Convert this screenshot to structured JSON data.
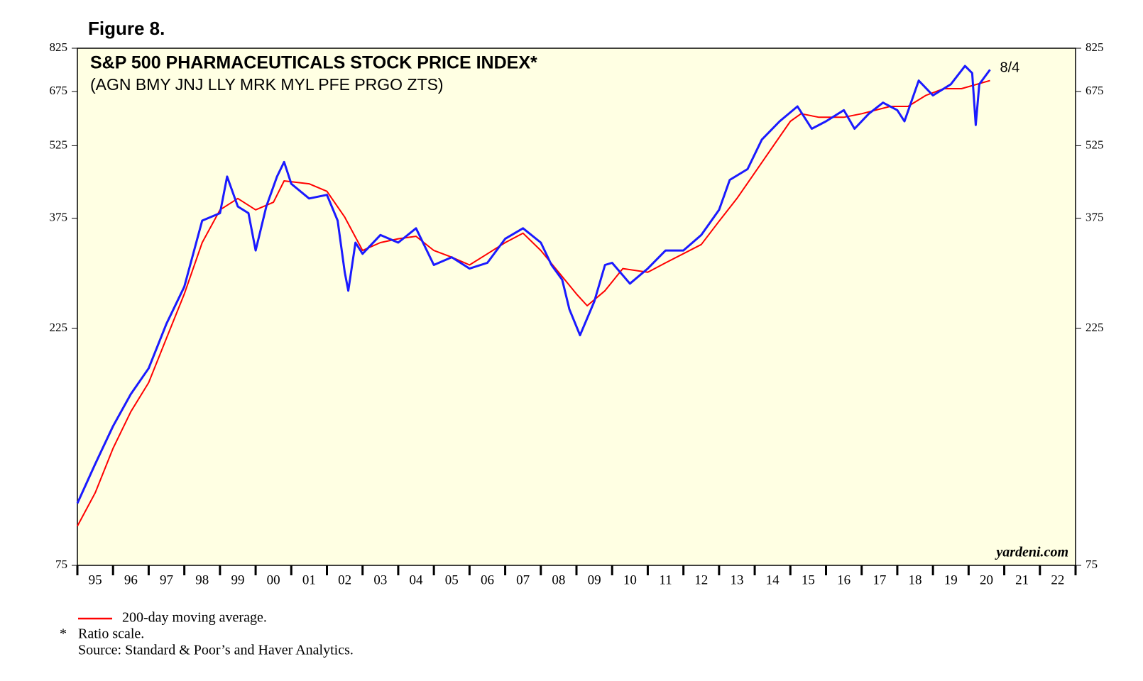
{
  "chart_data": {
    "type": "line",
    "figure_label": "Figure 8.",
    "title": "S&P 500 PHARMACEUTICALS STOCK PRICE INDEX*",
    "subtitle": "(AGN BMY JNJ LLY MRK MYL PFE PRGO ZTS)",
    "watermark": "yardeni.com",
    "end_label": "8/4",
    "footnote_marker": "*",
    "footnote": "Ratio scale.",
    "source": "Source: Standard & Poor’s and Haver Analytics.",
    "log_scale": true,
    "ylim": [
      75,
      825
    ],
    "yticks": [
      75,
      225,
      375,
      525,
      675,
      825
    ],
    "xlim": [
      1995,
      2023
    ],
    "categories": [
      "95",
      "96",
      "97",
      "98",
      "99",
      "00",
      "01",
      "02",
      "03",
      "04",
      "05",
      "06",
      "07",
      "08",
      "09",
      "10",
      "11",
      "12",
      "13",
      "14",
      "15",
      "16",
      "17",
      "18",
      "19",
      "20",
      "21",
      "22"
    ],
    "background": "#ffffe3",
    "series": [
      {
        "color": "#1a1aff",
        "x": [
          1995.0,
          1995.5,
          1996.0,
          1996.5,
          1997.0,
          1997.5,
          1998.0,
          1998.5,
          1999.0,
          1999.2,
          1999.5,
          1999.8,
          2000.0,
          2000.3,
          2000.6,
          2000.8,
          2001.0,
          2001.5,
          2002.0,
          2002.3,
          2002.5,
          2002.6,
          2002.8,
          2003.0,
          2003.5,
          2004.0,
          2004.5,
          2005.0,
          2005.5,
          2006.0,
          2006.5,
          2007.0,
          2007.5,
          2008.0,
          2008.3,
          2008.6,
          2008.8,
          2009.1,
          2009.5,
          2009.8,
          2010.0,
          2010.5,
          2011.0,
          2011.5,
          2012.0,
          2012.5,
          2013.0,
          2013.3,
          2013.8,
          2014.2,
          2014.7,
          2015.2,
          2015.6,
          2016.0,
          2016.5,
          2016.8,
          2017.2,
          2017.6,
          2018.0,
          2018.2,
          2018.6,
          2019.0,
          2019.5,
          2019.9,
          2020.1,
          2020.2,
          2020.3,
          2020.6
        ],
        "values": [
          100,
          120,
          143,
          166,
          187,
          230,
          273,
          371,
          384,
          455,
          396,
          384,
          323,
          396,
          455,
          487,
          440,
          411,
          418,
          371,
          292,
          268,
          335,
          318,
          347,
          335,
          358,
          302,
          313,
          297,
          305,
          341,
          358,
          335,
          302,
          282,
          246,
          218,
          255,
          302,
          305,
          277,
          297,
          323,
          323,
          347,
          390,
          448,
          471,
          540,
          588,
          630,
          568,
          588,
          619,
          568,
          609,
          641,
          619,
          588,
          710,
          663,
          698,
          760,
          735,
          578,
          698,
          747
        ]
      },
      {
        "name": "200-day moving average.",
        "color": "#ff0000",
        "x": [
          1995.0,
          1995.5,
          1996.0,
          1996.5,
          1997.0,
          1997.5,
          1998.0,
          1998.5,
          1999.0,
          1999.5,
          2000.0,
          2000.5,
          2000.8,
          2001.5,
          2002.0,
          2002.5,
          2003.0,
          2003.5,
          2004.0,
          2004.5,
          2005.0,
          2005.5,
          2006.0,
          2006.5,
          2007.0,
          2007.5,
          2008.0,
          2008.5,
          2009.0,
          2009.3,
          2009.8,
          2010.3,
          2011.0,
          2011.5,
          2012.5,
          2013.0,
          2013.5,
          2014.0,
          2014.5,
          2015.0,
          2015.3,
          2015.8,
          2016.5,
          2017.0,
          2017.8,
          2018.3,
          2018.8,
          2019.3,
          2019.8,
          2020.6
        ],
        "values": [
          90,
          105,
          129,
          153,
          175,
          215,
          264,
          335,
          390,
          411,
          390,
          404,
          446,
          440,
          425,
          377,
          323,
          335,
          341,
          345,
          323,
          313,
          302,
          318,
          335,
          350,
          323,
          292,
          264,
          250,
          268,
          297,
          292,
          305,
          332,
          370,
          411,
          463,
          522,
          588,
          609,
          599,
          599,
          609,
          630,
          630,
          663,
          684,
          684,
          710
        ]
      }
    ]
  }
}
